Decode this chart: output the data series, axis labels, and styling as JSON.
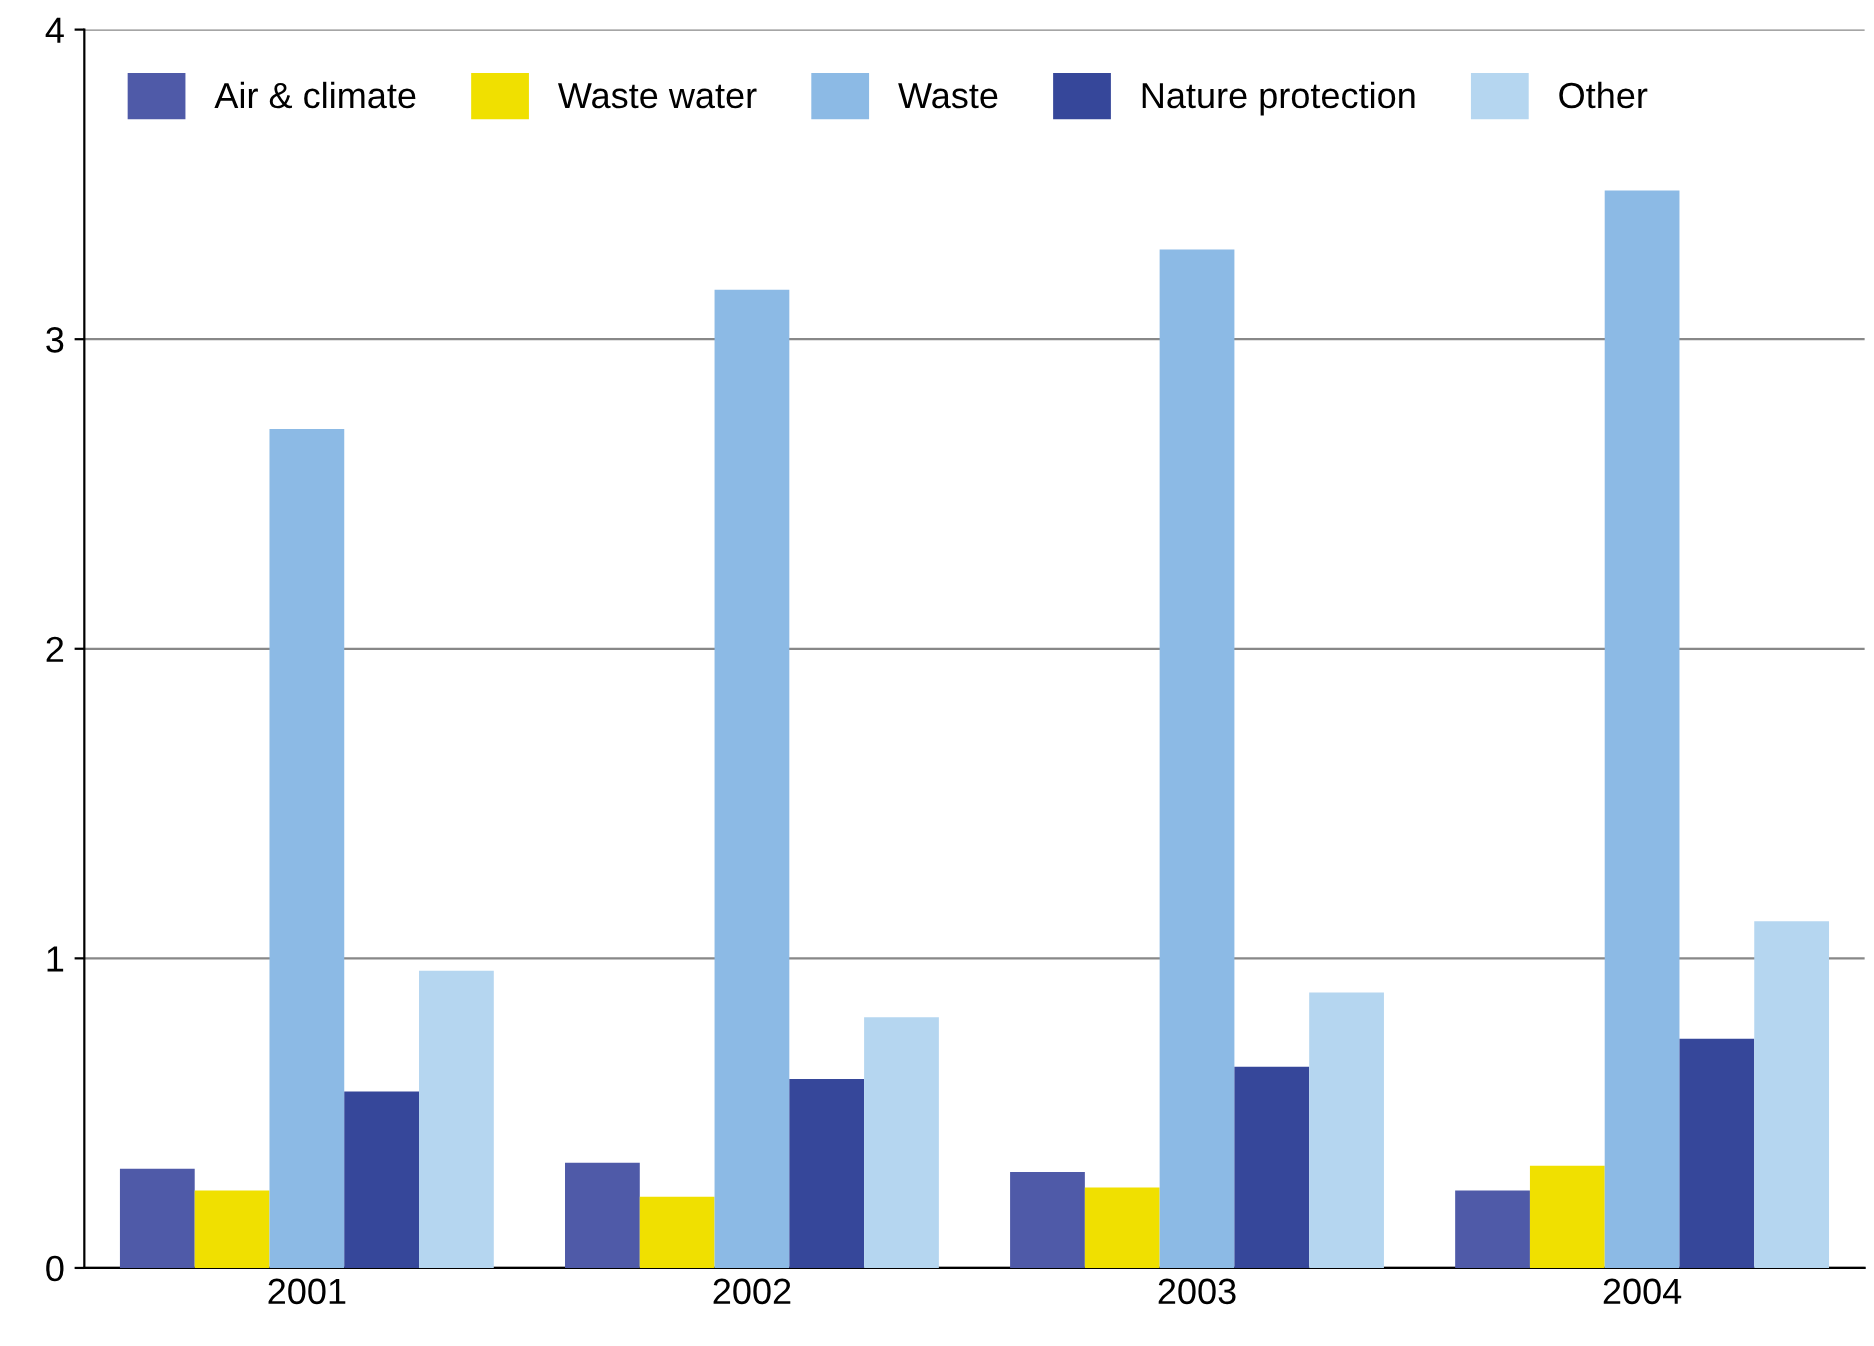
{
  "chart_data": {
    "type": "bar",
    "categories": [
      "2001",
      "2002",
      "2003",
      "2004"
    ],
    "series": [
      {
        "name": "Air & climate",
        "color": "#4f5aa8",
        "values": [
          0.32,
          0.34,
          0.31,
          0.25
        ]
      },
      {
        "name": "Waste water",
        "color": "#f0e000",
        "values": [
          0.25,
          0.23,
          0.26,
          0.33
        ]
      },
      {
        "name": "Waste",
        "color": "#8cbae5",
        "values": [
          2.71,
          3.16,
          3.29,
          3.48
        ]
      },
      {
        "name": "Nature protection",
        "color": "#36479a",
        "values": [
          0.57,
          0.61,
          0.65,
          0.74
        ]
      },
      {
        "name": "Other",
        "color": "#b5d6f0",
        "values": [
          0.96,
          0.81,
          0.89,
          1.12
        ]
      }
    ],
    "ylim": [
      0,
      4
    ],
    "yticks": [
      0,
      1,
      2,
      3,
      4
    ],
    "grid": "y",
    "legend": "top left"
  }
}
